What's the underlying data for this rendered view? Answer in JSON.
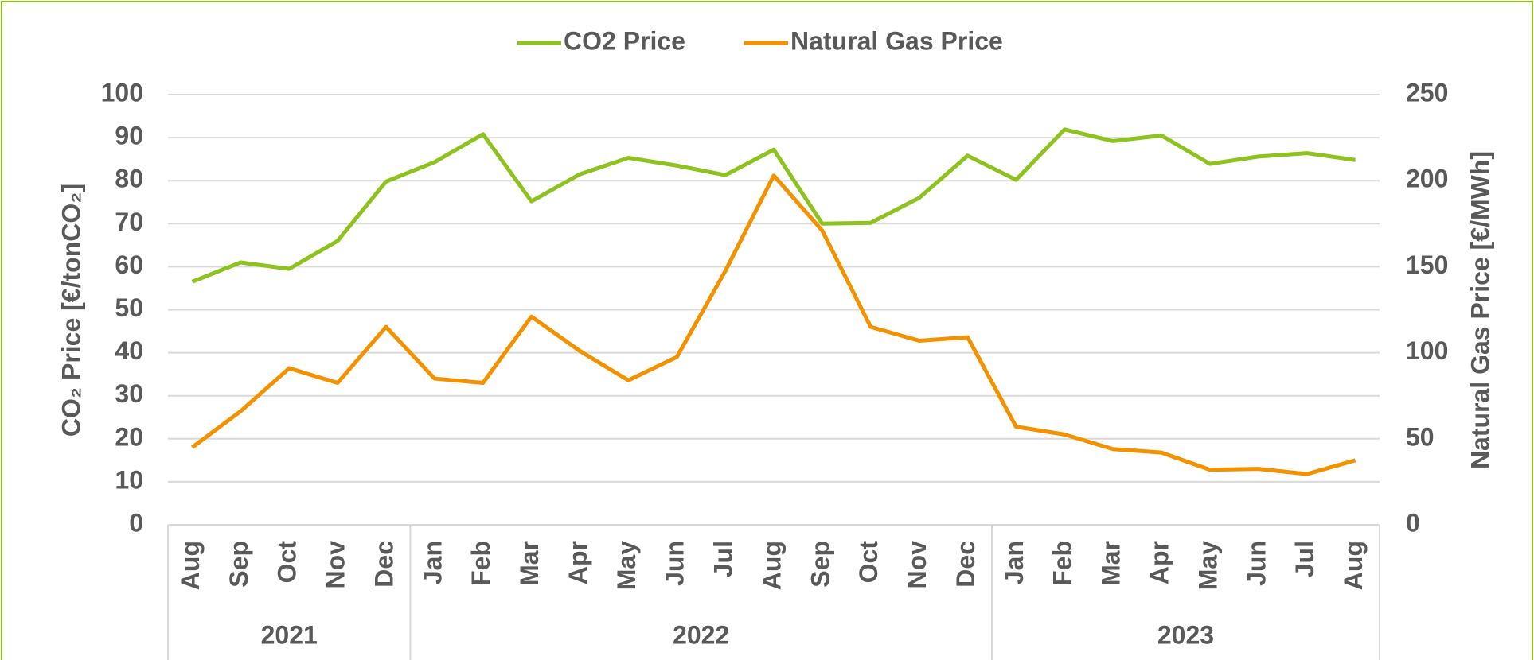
{
  "chart_data": {
    "type": "line",
    "categories": [
      "Aug",
      "Sep",
      "Oct",
      "Nov",
      "Dec",
      "Jan",
      "Feb",
      "Mar",
      "Apr",
      "May",
      "Jun",
      "Jul",
      "Aug",
      "Sep",
      "Oct",
      "Nov",
      "Dec",
      "Jan",
      "Feb",
      "Mar",
      "Apr",
      "May",
      "Jun",
      "Jul",
      "Aug"
    ],
    "groups": [
      {
        "label": "2021",
        "span": 5
      },
      {
        "label": "2022",
        "span": 12
      },
      {
        "label": "2023",
        "span": 8
      }
    ],
    "series": [
      {
        "name": "CO2 Price",
        "color": "#8dc21f",
        "values": [
          56.5,
          61,
          59.5,
          66,
          79.8,
          84.3,
          90.8,
          75.2,
          81.5,
          85.3,
          83.5,
          81.3,
          87.2,
          70,
          70.2,
          76,
          85.8,
          80.2,
          91.9,
          89.2,
          90.5,
          83.9,
          85.6,
          86.4,
          84.8
        ]
      },
      {
        "name": "Natural Gas Price",
        "color": "#f39200",
        "axis": "y2",
        "values": [
          45,
          66,
          91,
          82.5,
          115,
          85,
          82.5,
          121,
          101,
          84,
          97.5,
          147.5,
          203,
          171,
          115,
          107,
          109,
          57,
          52.5,
          44,
          42,
          32,
          32.5,
          29.5,
          37.5
        ]
      }
    ],
    "ylabel": "CO₂ Price [€/tonCO₂]",
    "y2label": "Natural Gas Price [€/MWh]",
    "ylim": [
      0,
      100
    ],
    "yticks": [
      0,
      10,
      20,
      30,
      40,
      50,
      60,
      70,
      80,
      90,
      100
    ],
    "y2lim": [
      0,
      250
    ],
    "y2ticks": [
      0,
      50,
      100,
      150,
      200,
      250
    ],
    "grid": true,
    "legend": "top"
  }
}
